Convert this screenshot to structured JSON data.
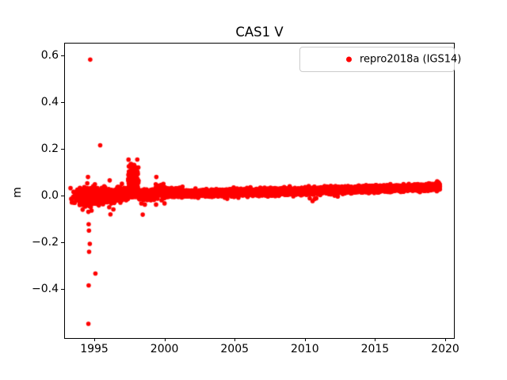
{
  "title": "CAS1 V",
  "ylabel": "m",
  "legend": {
    "label": "repro2018a (IGS14)",
    "marker_color": "#ff0000"
  },
  "chart_data": {
    "type": "scatter",
    "title": "CAS1 V",
    "xlabel": "",
    "ylabel": "m",
    "grid": false,
    "legend_position": "upper right",
    "marker_color": "#ff0000",
    "marker_radius_px": 2.8,
    "xlim": [
      1992.91,
      2020.62
    ],
    "ylim": [
      -0.61,
      0.65
    ],
    "xticks": [
      1995,
      2000,
      2005,
      2010,
      2015,
      2020
    ],
    "xtick_labels": [
      "1995",
      "2000",
      "2005",
      "2010",
      "2015",
      "2020"
    ],
    "yticks": [
      -0.4,
      -0.2,
      0.0,
      0.2,
      0.4,
      0.6
    ],
    "ytick_labels": [
      "−0.4",
      "−0.2",
      "0.0",
      "0.2",
      "0.4",
      "0.6"
    ],
    "series": [
      {
        "name": "repro2018a (IGS14)",
        "color": "#ff0000"
      }
    ],
    "band_model": {
      "seed": 7,
      "description": "dense daily scatter band; center value in m drifts from ~-0.005 (1994) to ~0.04 (2019.6)",
      "segments": [
        {
          "from": 1993.3,
          "to": 1993.95,
          "c0": -0.006,
          "c1": -0.006,
          "sigma": 0.016,
          "n": 28
        },
        {
          "from": 1993.95,
          "to": 1996.6,
          "c0": -0.007,
          "c1": -0.003,
          "sigma": 0.014,
          "n": 850,
          "wiggle": 0.005,
          "tail_p": 0.012,
          "tail_max": 0.045
        },
        {
          "from": 1996.6,
          "to": 1997.4,
          "c0": 0.004,
          "c1": 0.012,
          "sigma": 0.012,
          "n": 260,
          "wiggle": 0.004
        },
        {
          "from": 1997.4,
          "to": 1998.15,
          "c0": 0.03,
          "c1": 0.03,
          "sigma": 0.024,
          "n": 260,
          "asym_up": 1.8,
          "floor_offset": 0.035
        },
        {
          "from": 1998.15,
          "to": 1999.35,
          "c0": 0.002,
          "c1": 0.004,
          "sigma": 0.009,
          "n": 380,
          "wiggle": 0.003
        },
        {
          "from": 1999.35,
          "to": 2000.05,
          "c0": 0.015,
          "c1": 0.014,
          "sigma": 0.016,
          "n": 90
        },
        {
          "from": 2000.05,
          "to": 2001.3,
          "c0": 0.012,
          "c1": 0.01,
          "sigma": 0.009,
          "n": 400
        },
        {
          "from": 2001.3,
          "to": 2007.0,
          "c0": 0.008,
          "c1": 0.014,
          "sigma": 0.0065,
          "n": 1850,
          "wiggle": 0.0015
        },
        {
          "from": 2007.0,
          "to": 2013.0,
          "c0": 0.014,
          "c1": 0.024,
          "sigma": 0.0065,
          "n": 1950,
          "wiggle": 0.0015
        },
        {
          "from": 2013.0,
          "to": 2019.3,
          "c0": 0.024,
          "c1": 0.036,
          "sigma": 0.006,
          "n": 2050,
          "wiggle": 0.0012
        },
        {
          "from": 2019.3,
          "to": 2019.62,
          "c0": 0.037,
          "c1": 0.039,
          "sigma": 0.0075,
          "n": 140
        }
      ]
    },
    "outliers": [
      [
        1994.71,
        0.581
      ],
      [
        1995.42,
        0.215
      ],
      [
        1997.84,
        0.131
      ],
      [
        1997.88,
        0.122
      ],
      [
        1997.86,
        0.112
      ],
      [
        1997.8,
        0.095
      ],
      [
        1994.55,
        0.079
      ],
      [
        1994.5,
        0.052
      ],
      [
        1999.42,
        0.079
      ],
      [
        1999.76,
        0.045
      ],
      [
        2000.23,
        0.028
      ],
      [
        1996.15,
        -0.081
      ],
      [
        1998.45,
        -0.082
      ],
      [
        1998.35,
        -0.034
      ],
      [
        1998.6,
        -0.039
      ],
      [
        1999.4,
        -0.039
      ],
      [
        1994.6,
        -0.123
      ],
      [
        1994.62,
        -0.15
      ],
      [
        1994.68,
        -0.207
      ],
      [
        1994.63,
        -0.241
      ],
      [
        1995.08,
        -0.334
      ],
      [
        1994.6,
        -0.385
      ],
      [
        1994.58,
        -0.549
      ],
      [
        2010.35,
        -0.012
      ],
      [
        2010.55,
        -0.024
      ],
      [
        2010.7,
        -0.015
      ]
    ]
  }
}
